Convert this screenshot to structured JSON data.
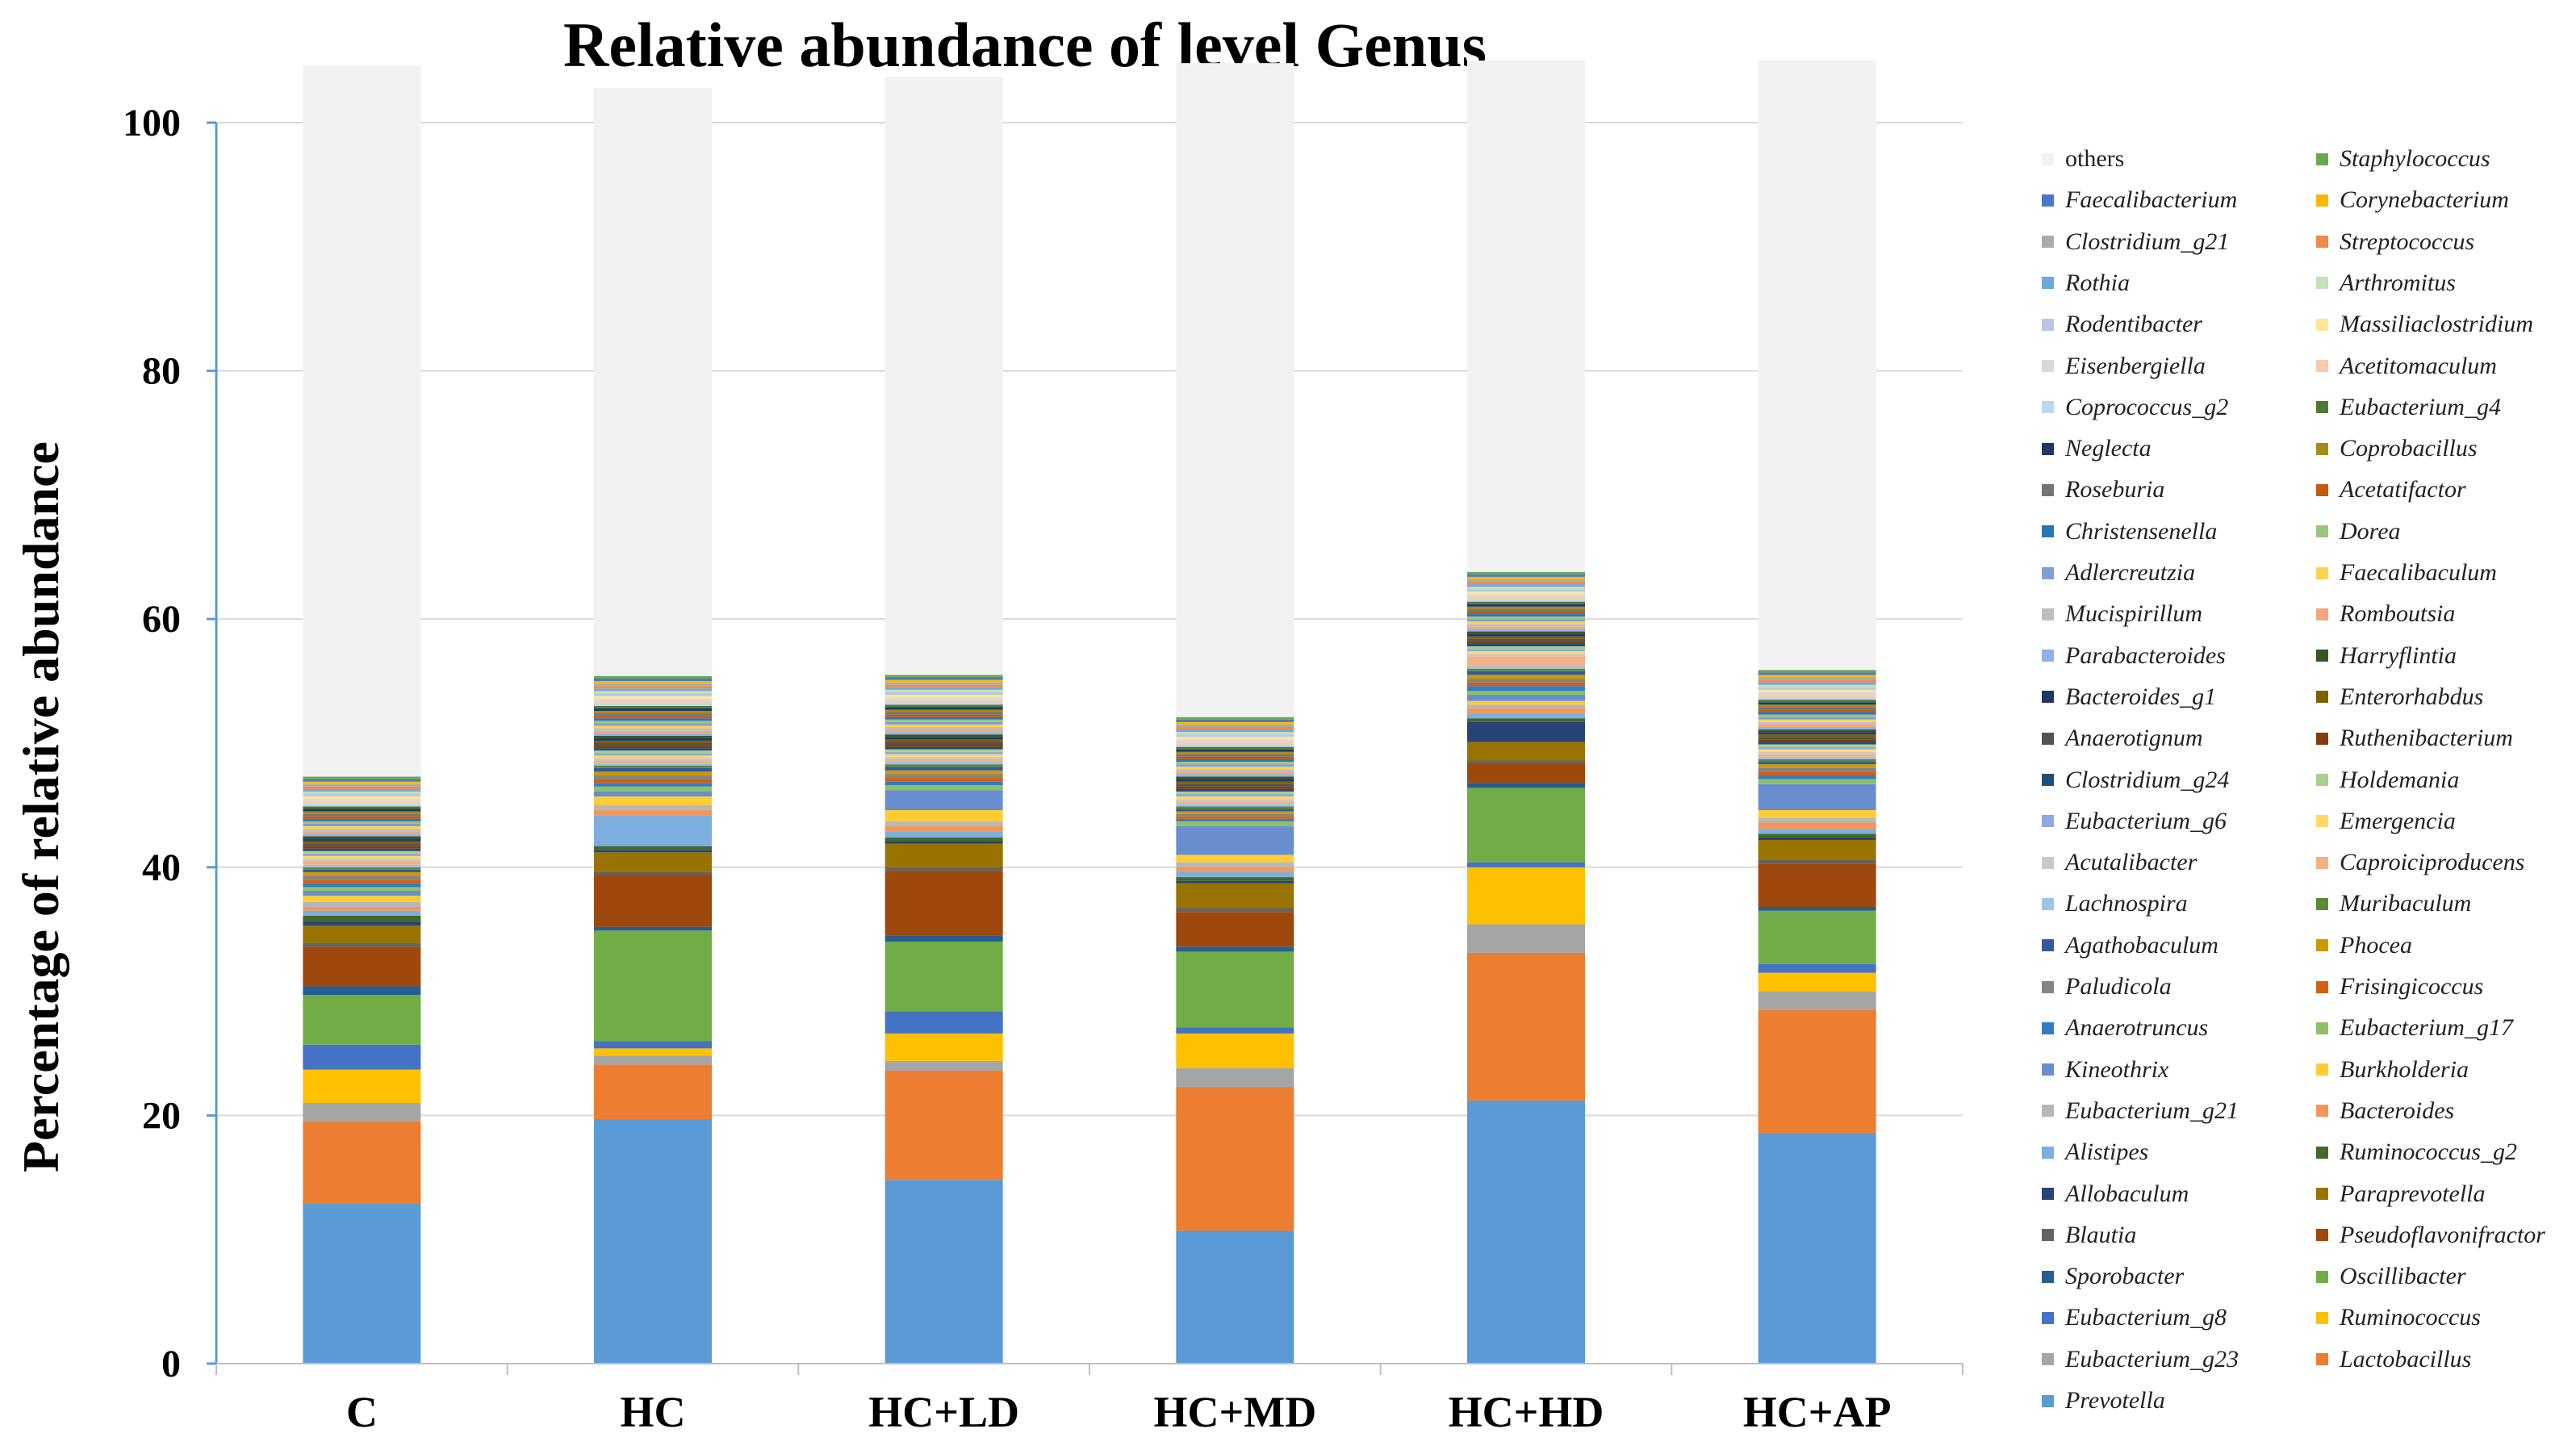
{
  "chart_data": {
    "type": "bar",
    "stacked": true,
    "title": "Relative abundance of level Genus",
    "xlabel": "",
    "ylabel": "Percentage of relative abundance",
    "ylim": [
      0,
      100
    ],
    "yticks": [
      0,
      20,
      40,
      60,
      80,
      100
    ],
    "grid": true,
    "legend_position": "right",
    "categories": [
      "C",
      "HC",
      "HC+LD",
      "HC+MD",
      "HC+HD",
      "HC+AP"
    ],
    "series": [
      {
        "name": "Prevotella",
        "color": "#5B9BD5",
        "values": [
          12.9,
          19.7,
          14.8,
          10.7,
          21.2,
          18.6
        ]
      },
      {
        "name": "Lactobacillus",
        "color": "#ED7D31",
        "values": [
          6.6,
          4.4,
          8.8,
          11.6,
          11.9,
          9.9
        ]
      },
      {
        "name": "Eubacterium_g23",
        "color": "#A5A5A5",
        "values": [
          1.5,
          0.7,
          0.8,
          1.5,
          2.3,
          1.5
        ]
      },
      {
        "name": "Ruminococcus",
        "color": "#FFC000",
        "values": [
          2.7,
          0.6,
          2.2,
          2.8,
          4.6,
          1.5
        ]
      },
      {
        "name": "Eubacterium_g8",
        "color": "#4472C4",
        "values": [
          2.0,
          0.6,
          1.8,
          0.5,
          0.4,
          0.7
        ]
      },
      {
        "name": "Oscillibacter",
        "color": "#70AD47",
        "values": [
          4.0,
          8.9,
          5.6,
          6.1,
          6.0,
          4.3
        ]
      },
      {
        "name": "Sporobacter",
        "color": "#255E91",
        "values": [
          0.7,
          0.3,
          0.5,
          0.4,
          0.4,
          0.3
        ]
      },
      {
        "name": "Pseudoflavonifractor",
        "color": "#9E480E",
        "values": [
          3.2,
          4.2,
          5.2,
          2.8,
          1.6,
          3.5
        ]
      },
      {
        "name": "Blautia",
        "color": "#636363",
        "values": [
          0.3,
          0.2,
          0.3,
          0.3,
          0.2,
          0.3
        ]
      },
      {
        "name": "Paraprevotella",
        "color": "#997300",
        "values": [
          1.4,
          1.6,
          1.9,
          2.0,
          1.5,
          1.6
        ]
      },
      {
        "name": "Allobaculum",
        "color": "#264478",
        "values": [
          0.3,
          0.2,
          0.2,
          0.2,
          1.6,
          0.2
        ]
      },
      {
        "name": "Ruminococcus_g2",
        "color": "#43682B",
        "values": [
          0.5,
          0.3,
          0.3,
          0.3,
          0.3,
          0.3
        ]
      },
      {
        "name": "Alistipes",
        "color": "#7CAFDD",
        "values": [
          0.4,
          2.5,
          0.5,
          0.4,
          0.4,
          0.4
        ]
      },
      {
        "name": "Bacteroides",
        "color": "#F1975A",
        "values": [
          0.3,
          0.4,
          0.4,
          0.4,
          0.4,
          0.5
        ]
      },
      {
        "name": "Eubacterium_g21",
        "color": "#B7B7B7",
        "values": [
          0.4,
          0.4,
          0.4,
          0.4,
          0.3,
          0.4
        ]
      },
      {
        "name": "Burkholderia",
        "color": "#FFCD33",
        "values": [
          0.5,
          0.7,
          0.9,
          0.6,
          0.3,
          0.6
        ]
      },
      {
        "name": "Kineothrix",
        "color": "#698ED0",
        "values": [
          0.4,
          0.4,
          1.6,
          2.3,
          0.5,
          2.1
        ]
      },
      {
        "name": "Eubacterium_g17",
        "color": "#8CC168",
        "values": [
          0.3,
          0.4,
          0.4,
          0.4,
          0.3,
          0.4
        ]
      },
      {
        "name": "Anaerotruncus",
        "color": "#327DC2",
        "values": [
          0.3,
          0.3,
          0.3,
          0.2,
          0.4,
          0.3
        ]
      },
      {
        "name": "Frisingicoccus",
        "color": "#D26012",
        "values": [
          0.3,
          0.3,
          0.3,
          0.2,
          0.3,
          0.3
        ]
      },
      {
        "name": "Paludicola",
        "color": "#848484",
        "values": [
          0.3,
          0.3,
          0.3,
          0.2,
          0.3,
          0.3
        ]
      },
      {
        "name": "Phocea",
        "color": "#CC9A00",
        "values": [
          0.3,
          0.3,
          0.3,
          0.2,
          0.3,
          0.3
        ]
      },
      {
        "name": "Agathobaculum",
        "color": "#335AA1",
        "values": [
          0.2,
          0.3,
          0.3,
          0.2,
          0.3,
          0.2
        ]
      },
      {
        "name": "Muribaculum",
        "color": "#5A8A39",
        "values": [
          0.2,
          0.2,
          0.2,
          0.2,
          0.2,
          0.2
        ]
      },
      {
        "name": "Lachnospira",
        "color": "#9DC3E6",
        "values": [
          0.2,
          0.2,
          0.2,
          0.2,
          0.2,
          0.2
        ]
      },
      {
        "name": "Caproiciproducens",
        "color": "#F4B183",
        "values": [
          0.3,
          0.2,
          0.2,
          0.2,
          0.8,
          0.2
        ]
      },
      {
        "name": "Acutalibacter",
        "color": "#C9C9C9",
        "values": [
          0.2,
          0.2,
          0.2,
          0.2,
          0.2,
          0.2
        ]
      },
      {
        "name": "Emergencia",
        "color": "#FFD966",
        "values": [
          0.2,
          0.2,
          0.2,
          0.2,
          0.2,
          0.2
        ]
      },
      {
        "name": "Eubacterium_g6",
        "color": "#8FAADC",
        "values": [
          0.2,
          0.2,
          0.2,
          0.2,
          0.2,
          0.2
        ]
      },
      {
        "name": "Holdemania",
        "color": "#A9D18E",
        "values": [
          0.2,
          0.2,
          0.2,
          0.2,
          0.2,
          0.2
        ]
      },
      {
        "name": "Clostridium_g24",
        "color": "#1F4E79",
        "values": [
          0.2,
          0.2,
          0.2,
          0.2,
          0.2,
          0.2
        ]
      },
      {
        "name": "Ruthenibacterium",
        "color": "#843C0C",
        "values": [
          0.2,
          0.2,
          0.2,
          0.2,
          0.2,
          0.2
        ]
      },
      {
        "name": "Anaerotignum",
        "color": "#525252",
        "values": [
          0.2,
          0.2,
          0.2,
          0.2,
          0.2,
          0.2
        ]
      },
      {
        "name": "Enterorhabdus",
        "color": "#7F6000",
        "values": [
          0.2,
          0.2,
          0.2,
          0.2,
          0.2,
          0.2
        ]
      },
      {
        "name": "Bacteroides_g1",
        "color": "#203864",
        "values": [
          0.2,
          0.2,
          0.2,
          0.2,
          0.2,
          0.2
        ]
      },
      {
        "name": "Harryflintia",
        "color": "#385723",
        "values": [
          0.2,
          0.2,
          0.2,
          0.2,
          0.2,
          0.2
        ]
      },
      {
        "name": "Parabacteroides",
        "color": "#8EB4E3",
        "values": [
          0.2,
          0.2,
          0.2,
          0.2,
          0.2,
          0.2
        ]
      },
      {
        "name": "Romboutsia",
        "color": "#F4A582",
        "values": [
          0.2,
          0.2,
          0.2,
          0.2,
          0.2,
          0.2
        ]
      },
      {
        "name": "Mucispirillum",
        "color": "#BFBFBF",
        "values": [
          0.2,
          0.2,
          0.2,
          0.2,
          0.2,
          0.2
        ]
      },
      {
        "name": "Faecalibaculum",
        "color": "#FFD34D",
        "values": [
          0.2,
          0.2,
          0.2,
          0.2,
          0.2,
          0.2
        ]
      },
      {
        "name": "Adlercreutzia",
        "color": "#7F9FD9",
        "values": [
          0.2,
          0.2,
          0.2,
          0.2,
          0.2,
          0.2
        ]
      },
      {
        "name": "Dorea",
        "color": "#98C67C",
        "values": [
          0.2,
          0.2,
          0.2,
          0.2,
          0.2,
          0.2
        ]
      },
      {
        "name": "Christensenella",
        "color": "#2E75B6",
        "values": [
          0.2,
          0.2,
          0.2,
          0.2,
          0.2,
          0.2
        ]
      },
      {
        "name": "Acetatifactor",
        "color": "#C55A11",
        "values": [
          0.2,
          0.2,
          0.2,
          0.2,
          0.2,
          0.2
        ]
      },
      {
        "name": "Roseburia",
        "color": "#757575",
        "values": [
          0.2,
          0.2,
          0.2,
          0.2,
          0.2,
          0.2
        ]
      },
      {
        "name": "Coprobacillus",
        "color": "#A68A1A",
        "values": [
          0.2,
          0.2,
          0.2,
          0.2,
          0.2,
          0.2
        ]
      },
      {
        "name": "Neglecta",
        "color": "#1F3864",
        "values": [
          0.2,
          0.2,
          0.2,
          0.2,
          0.2,
          0.2
        ]
      },
      {
        "name": "Eubacterium_g4",
        "color": "#4E7A2F",
        "values": [
          0.2,
          0.2,
          0.2,
          0.2,
          0.2,
          0.2
        ]
      },
      {
        "name": "Coprococcus_g2",
        "color": "#BDD7EE",
        "values": [
          0.2,
          0.2,
          0.2,
          0.2,
          0.2,
          0.2
        ]
      },
      {
        "name": "Acetitomaculum",
        "color": "#F8CBAD",
        "values": [
          0.2,
          0.2,
          0.2,
          0.2,
          0.2,
          0.2
        ]
      },
      {
        "name": "Eisenbergiella",
        "color": "#D9D9D9",
        "values": [
          0.2,
          0.2,
          0.2,
          0.2,
          0.2,
          0.2
        ]
      },
      {
        "name": "Massiliaclostridium",
        "color": "#FFE699",
        "values": [
          0.2,
          0.2,
          0.2,
          0.2,
          0.2,
          0.2
        ]
      },
      {
        "name": "Rodentibacter",
        "color": "#B4C7E7",
        "values": [
          0.2,
          0.2,
          0.2,
          0.2,
          0.2,
          0.2
        ]
      },
      {
        "name": "Arthromitus",
        "color": "#C5E0B4",
        "values": [
          0.2,
          0.2,
          0.2,
          0.2,
          0.2,
          0.2
        ]
      },
      {
        "name": "Rothia",
        "color": "#6FA8DC",
        "values": [
          0.2,
          0.2,
          0.2,
          0.2,
          0.2,
          0.2
        ]
      },
      {
        "name": "Streptococcus",
        "color": "#EE8A4A",
        "values": [
          0.2,
          0.2,
          0.2,
          0.2,
          0.2,
          0.2
        ]
      },
      {
        "name": "Clostridium_g21",
        "color": "#ABABAB",
        "values": [
          0.2,
          0.2,
          0.2,
          0.2,
          0.2,
          0.2
        ]
      },
      {
        "name": "Corynebacterium",
        "color": "#F9B800",
        "values": [
          0.2,
          0.2,
          0.2,
          0.2,
          0.2,
          0.2
        ]
      },
      {
        "name": "Faecalibacterium",
        "color": "#4A77C9",
        "values": [
          0.2,
          0.2,
          0.2,
          0.2,
          0.2,
          0.2
        ]
      },
      {
        "name": "Staphylococcus",
        "color": "#6AA84F",
        "values": [
          0.2,
          0.2,
          0.2,
          0.2,
          0.2,
          0.2
        ]
      },
      {
        "name": "others",
        "color": "#F2F2F2",
        "values": [
          57.3,
          47.4,
          48.2,
          52.7,
          41.2,
          49.1
        ]
      }
    ],
    "legend_order": [
      "others",
      "Faecalibacterium",
      "Clostridium_g21",
      "Rothia",
      "Rodentibacter",
      "Eisenbergiella",
      "Coprococcus_g2",
      "Neglecta",
      "Roseburia",
      "Christensenella",
      "Adlercreutzia",
      "Mucispirillum",
      "Parabacteroides",
      "Bacteroides_g1",
      "Anaerotignum",
      "Clostridium_g24",
      "Eubacterium_g6",
      "Acutalibacter",
      "Lachnospira",
      "Agathobaculum",
      "Paludicola",
      "Anaerotruncus",
      "Kineothrix",
      "Eubacterium_g21",
      "Alistipes",
      "Allobaculum",
      "Blautia",
      "Sporobacter",
      "Eubacterium_g8",
      "Eubacterium_g23",
      "Prevotella",
      "Staphylococcus",
      "Corynebacterium",
      "Streptococcus",
      "Arthromitus",
      "Massiliaclostridium",
      "Acetitomaculum",
      "Eubacterium_g4",
      "Coprobacillus",
      "Acetatifactor",
      "Dorea",
      "Faecalibaculum",
      "Romboutsia",
      "Harryflintia",
      "Enterorhabdus",
      "Ruthenibacterium",
      "Holdemania",
      "Emergencia",
      "Caproiciproducens",
      "Muribaculum",
      "Phocea",
      "Frisingicoccus",
      "Eubacterium_g17",
      "Burkholderia",
      "Bacteroides",
      "Ruminococcus_g2",
      "Paraprevotella",
      "Pseudoflavonifractor",
      "Oscillibacter",
      "Ruminococcus",
      "Lactobacillus"
    ]
  }
}
